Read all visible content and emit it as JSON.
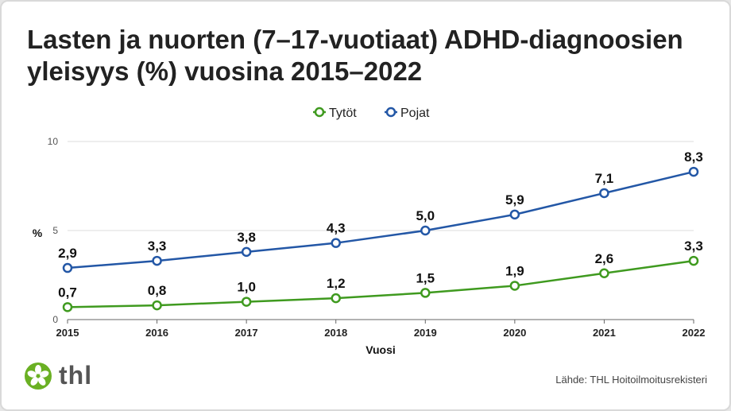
{
  "title": "Lasten ja nuorten (7–17-vuotiaat) ADHD-diagnoosien yleisyys (%) vuosina 2015–2022",
  "source": "Lähde: THL Hoitoilmoitusrekisteri",
  "logo": {
    "text": "thl",
    "color": "#6ab023"
  },
  "chart_data": {
    "type": "line",
    "title": "Lasten ja nuorten (7–17-vuotiaat) ADHD-diagnoosien yleisyys (%) vuosina 2015–2022",
    "xlabel": "Vuosi",
    "ylabel": "%",
    "categories": [
      "2015",
      "2016",
      "2017",
      "2018",
      "2019",
      "2020",
      "2021",
      "2022"
    ],
    "ylim": [
      0,
      10
    ],
    "yticks": [
      "0",
      "5",
      "10"
    ],
    "grid": true,
    "legend": "top",
    "series": [
      {
        "name": "Tytöt",
        "color": "#3f9a1f",
        "values": [
          0.7,
          0.8,
          1.0,
          1.2,
          1.5,
          1.9,
          2.6,
          3.3
        ],
        "labels": [
          "0,7",
          "0,8",
          "1,0",
          "1,2",
          "1,5",
          "1,9",
          "2,6",
          "3,3"
        ]
      },
      {
        "name": "Pojat",
        "color": "#2357a6",
        "values": [
          2.9,
          3.3,
          3.8,
          4.3,
          5.0,
          5.9,
          7.1,
          8.3
        ],
        "labels": [
          "2,9",
          "3,3",
          "3,8",
          "4,3",
          "5,0",
          "5,9",
          "7,1",
          "8,3"
        ]
      }
    ]
  }
}
